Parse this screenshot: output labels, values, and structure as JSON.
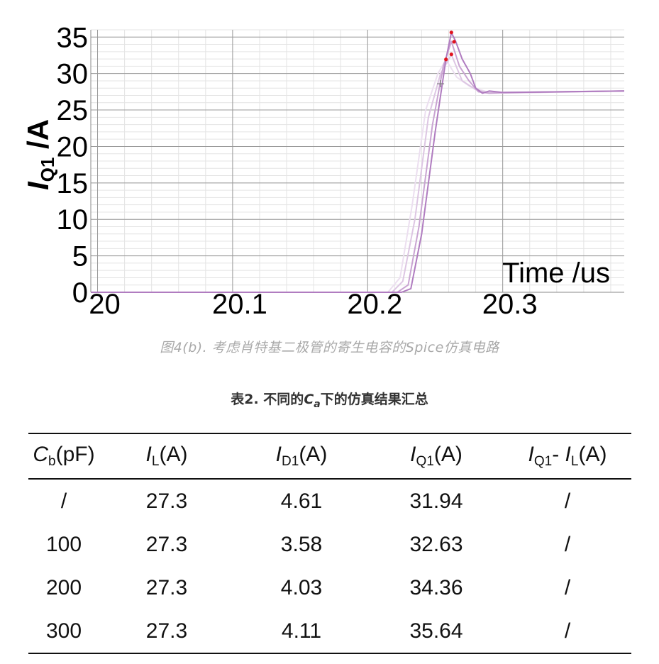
{
  "chart_data": {
    "type": "line",
    "xlabel": "Time /us",
    "ylabel_main": "I",
    "ylabel_sub": "Q1",
    "ylabel_unit": " /A",
    "xlim": [
      19.995,
      20.39
    ],
    "ylim": [
      0,
      36
    ],
    "x_ticks": [
      20,
      20.1,
      20.2,
      20.3
    ],
    "x_tick_labels": [
      "20",
      "20.1",
      "20.2",
      "20.3"
    ],
    "y_ticks": [
      0,
      5,
      10,
      15,
      20,
      25,
      30,
      35
    ],
    "y_tick_labels": [
      "0",
      "5",
      "10",
      "15",
      "20",
      "25",
      "30",
      "35"
    ],
    "grid": true,
    "series": [
      {
        "color": "#b07cc0",
        "x": [
          19.995,
          20.2,
          20.225,
          20.232,
          20.24,
          20.25,
          20.258,
          20.262,
          20.265,
          20.27,
          20.276,
          20.28,
          20.285,
          20.29,
          20.3,
          20.39
        ],
        "y": [
          0,
          0,
          0,
          0.5,
          8,
          22,
          32,
          35.6,
          34.5,
          32,
          30,
          28,
          27.3,
          27.6,
          27.4,
          27.6
        ]
      },
      {
        "color": "#c9a4d2",
        "x": [
          19.995,
          20.2,
          20.222,
          20.23,
          20.238,
          20.248,
          20.256,
          20.262,
          20.268,
          20.275,
          20.282,
          20.29,
          20.3,
          20.39
        ],
        "y": [
          0,
          0,
          0,
          1,
          9,
          23,
          31,
          34.4,
          31,
          29,
          27.5,
          27.3,
          27.4,
          27.6
        ]
      },
      {
        "color": "#ddc6e3",
        "x": [
          19.995,
          20.2,
          20.218,
          20.226,
          20.235,
          20.245,
          20.254,
          20.262,
          20.27,
          20.28,
          20.29,
          20.39
        ],
        "y": [
          0,
          0,
          0,
          1.5,
          10,
          24,
          30,
          32.6,
          29,
          27.8,
          27.3,
          27.6
        ]
      },
      {
        "color": "#ecdff0",
        "x": [
          19.995,
          20.2,
          20.215,
          20.224,
          20.233,
          20.243,
          20.252,
          20.258,
          20.266,
          20.276,
          20.29,
          20.39
        ],
        "y": [
          0,
          0,
          0,
          2,
          12,
          25,
          30,
          31.9,
          29.5,
          28.2,
          27.4,
          27.6
        ]
      }
    ],
    "peak_markers": [
      {
        "x": 20.258,
        "y": 31.94
      },
      {
        "x": 20.262,
        "y": 32.63
      },
      {
        "x": 20.264,
        "y": 34.36
      },
      {
        "x": 20.262,
        "y": 35.64
      }
    ],
    "cursor_marker": {
      "x": 20.254,
      "y": 28.6
    }
  },
  "caption": "图4(b). 考虑肖特基二极管的寄生电容的Spice仿真电路",
  "table": {
    "title_prefix": "表2. 不同的",
    "title_var": "C",
    "title_var_sub": "a",
    "title_suffix": "下的仿真结果汇总",
    "headers": [
      {
        "main": "C",
        "sub": "b",
        "tail": "(pF)"
      },
      {
        "main": "I",
        "sub": "L",
        "tail": "(A)"
      },
      {
        "main": "I",
        "sub": "D1",
        "tail": "(A)"
      },
      {
        "main": "I",
        "sub": "Q1",
        "tail": "(A)"
      },
      {
        "main": "I",
        "sub": "Q1",
        "mid": "- ",
        "main2": "I",
        "sub2": "L",
        "tail": "(A)"
      }
    ],
    "rows": [
      [
        "/",
        "27.3",
        "4.61",
        "31.94",
        "/"
      ],
      [
        "100",
        "27.3",
        "3.58",
        "32.63",
        "/"
      ],
      [
        "200",
        "27.3",
        "4.03",
        "34.36",
        "/"
      ],
      [
        "300",
        "27.3",
        "4.11",
        "35.64",
        "/"
      ]
    ]
  }
}
